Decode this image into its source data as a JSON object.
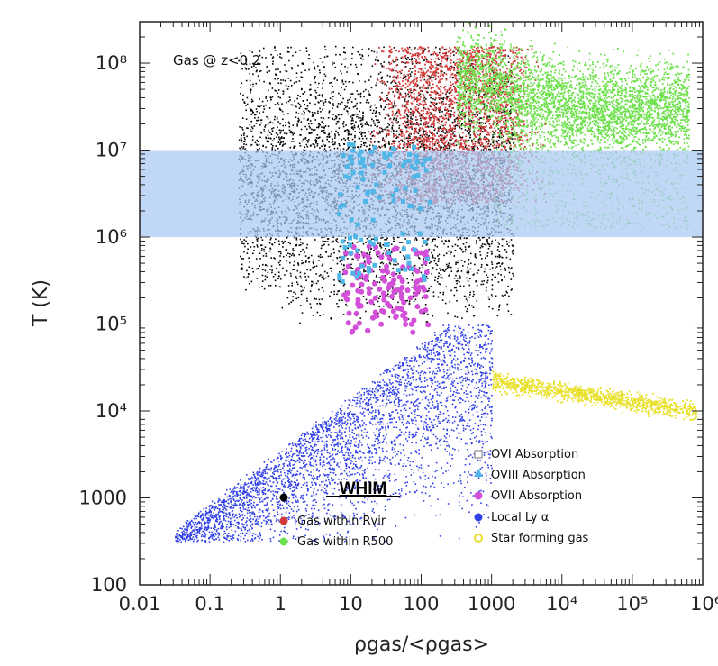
{
  "chart_data": {
    "type": "scatter",
    "xlabel": "ρgas/<ρgas>",
    "ylabel": "T (K)",
    "x_scale": "log",
    "y_scale": "log",
    "xlim": [
      0.01,
      1000000
    ],
    "ylim": [
      100,
      300000000
    ],
    "x_ticks": [
      "0.01",
      "0.1",
      "1",
      "10",
      "100",
      "1000",
      "10⁴",
      "10⁵",
      "10⁶"
    ],
    "y_ticks": [
      "100",
      "1000",
      "10⁴",
      "10⁵",
      "10⁶",
      "10⁷",
      "10⁸"
    ],
    "annotation": "Gas @ z<0.2",
    "highlight_band": {
      "y_range": [
        1000000,
        10000000
      ],
      "color": "#a9c8f2"
    },
    "colors": {
      "whim": "#000000",
      "rvir": "#d23a3a",
      "r500": "#6ce04a",
      "lya": "#2f3fe6",
      "star": "#e8e02a",
      "ovi": "#ffffff",
      "oviii": "#4fb6e8",
      "ovii": "#d24fd8"
    },
    "series": [
      {
        "name": "WHIM",
        "key": "whim"
      },
      {
        "name": "Gas within Rvir",
        "key": "rvir"
      },
      {
        "name": "Gas within R500",
        "key": "r500"
      },
      {
        "name": "Local Ly α",
        "key": "lya"
      },
      {
        "name": "Star forming gas",
        "key": "star"
      },
      {
        "name": "OVI Absorption",
        "key": "ovi"
      },
      {
        "name": "OVIII Absorption",
        "key": "oviii"
      },
      {
        "name": "OVII Absorption",
        "key": "ovii"
      }
    ],
    "legend_left": {
      "title": "WHIM",
      "items": [
        {
          "label": "Gas within Rvir",
          "key": "rvir"
        },
        {
          "label": "Gas within R500",
          "key": "r500"
        }
      ]
    },
    "legend_right": {
      "items": [
        {
          "label": "OVI Absorption",
          "key": "ovi"
        },
        {
          "label": "OVIII Absorption",
          "key": "oviii"
        },
        {
          "label": "OVII Absorption",
          "key": "ovii"
        },
        {
          "label": "Local Ly α",
          "key": "lya"
        },
        {
          "label": "Star forming gas",
          "key": "star"
        }
      ]
    }
  }
}
